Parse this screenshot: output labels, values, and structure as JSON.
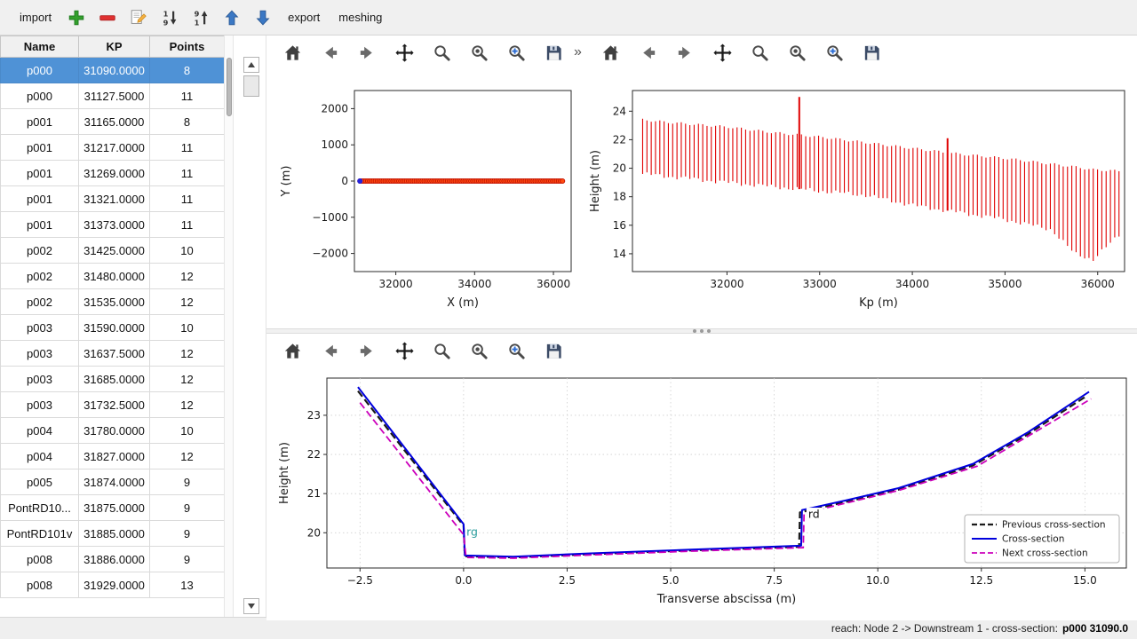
{
  "main_toolbar": {
    "import": "import",
    "export": "export",
    "meshing": "meshing"
  },
  "table": {
    "headers": [
      "Name",
      "KP",
      "Points"
    ],
    "rows": [
      [
        "p000",
        "31090.0000",
        "8"
      ],
      [
        "p000",
        "31127.5000",
        "11"
      ],
      [
        "p001",
        "31165.0000",
        "8"
      ],
      [
        "p001",
        "31217.0000",
        "11"
      ],
      [
        "p001",
        "31269.0000",
        "11"
      ],
      [
        "p001",
        "31321.0000",
        "11"
      ],
      [
        "p001",
        "31373.0000",
        "11"
      ],
      [
        "p002",
        "31425.0000",
        "10"
      ],
      [
        "p002",
        "31480.0000",
        "12"
      ],
      [
        "p002",
        "31535.0000",
        "12"
      ],
      [
        "p003",
        "31590.0000",
        "10"
      ],
      [
        "p003",
        "31637.5000",
        "12"
      ],
      [
        "p003",
        "31685.0000",
        "12"
      ],
      [
        "p003",
        "31732.5000",
        "12"
      ],
      [
        "p004",
        "31780.0000",
        "10"
      ],
      [
        "p004",
        "31827.0000",
        "12"
      ],
      [
        "p005",
        "31874.0000",
        "9"
      ],
      [
        "PontRD10...",
        "31875.0000",
        "9"
      ],
      [
        "PontRD101v",
        "31885.0000",
        "9"
      ],
      [
        "p008",
        "31886.0000",
        "9"
      ],
      [
        "p008",
        "31929.0000",
        "13"
      ]
    ],
    "selected_row": 0,
    "selected_color": "#4f92d6"
  },
  "plot_toolbar": {
    "overflow_label": "»",
    "buttons": [
      {
        "name": "home",
        "icon": "home"
      },
      {
        "name": "back",
        "icon": "arrow-left"
      },
      {
        "name": "forward",
        "icon": "arrow-right"
      },
      {
        "name": "pan",
        "icon": "move"
      },
      {
        "name": "zoom",
        "icon": "magnifier"
      },
      {
        "name": "configure-subplots",
        "icon": "magnifier-dot"
      },
      {
        "name": "edit-parameters",
        "icon": "magnifier-plus"
      },
      {
        "name": "save",
        "icon": "save"
      }
    ]
  },
  "status_bar": {
    "prefix": "reach: Node 2 -> Downstream 1 - cross-section:",
    "highlight": "p000 31090.0"
  },
  "chart_data": [
    {
      "id": "plan_view",
      "type": "scatter",
      "title": "",
      "xlabel": "X (m)",
      "ylabel": "Y (m)",
      "xlim": [
        30950,
        36450
      ],
      "ylim": [
        -2500,
        2500
      ],
      "xticks": [
        {
          "v": 32000,
          "label": "32000"
        },
        {
          "v": 34000,
          "label": "34000"
        },
        {
          "v": 36000,
          "label": "36000"
        }
      ],
      "yticks": [
        {
          "v": -2000,
          "label": "−2000"
        },
        {
          "v": -1000,
          "label": "−1000"
        },
        {
          "v": 0,
          "label": "0"
        },
        {
          "v": 1000,
          "label": "1000"
        },
        {
          "v": 2000,
          "label": "2000"
        }
      ],
      "grid": false,
      "series": {
        "x_start": 31090,
        "x_end": 36230,
        "n": 105,
        "y": 0,
        "color": "#ff4a10",
        "edge": "#c01000",
        "line_color": "#8b0000",
        "first_point_color": "#2222dd"
      }
    },
    {
      "id": "longitudinal_profile",
      "type": "vlines",
      "title": "",
      "xlabel": "Kp (m)",
      "ylabel": "Height (m)",
      "xlim": [
        30980,
        36290
      ],
      "ylim": [
        12.75,
        25.45
      ],
      "xticks": [
        {
          "v": 32000,
          "label": "32000"
        },
        {
          "v": 33000,
          "label": "33000"
        },
        {
          "v": 34000,
          "label": "34000"
        },
        {
          "v": 35000,
          "label": "35000"
        },
        {
          "v": 36000,
          "label": "36000"
        }
      ],
      "yticks": [
        {
          "v": 14,
          "label": "14"
        },
        {
          "v": 16,
          "label": "16"
        },
        {
          "v": 18,
          "label": "18"
        },
        {
          "v": 20,
          "label": "20"
        },
        {
          "v": 22,
          "label": "22"
        },
        {
          "v": 24,
          "label": "24"
        }
      ],
      "grid": false,
      "color": "#e00000",
      "envelope": [
        [
          31090,
          19.6,
          23.4
        ],
        [
          31400,
          19.4,
          23.2
        ],
        [
          32000,
          19.0,
          22.9
        ],
        [
          32500,
          18.7,
          22.5
        ],
        [
          33000,
          18.4,
          22.2
        ],
        [
          33500,
          18.1,
          21.8
        ],
        [
          34000,
          17.4,
          21.4
        ],
        [
          34500,
          16.9,
          21.0
        ],
        [
          35000,
          16.4,
          20.7
        ],
        [
          35500,
          15.7,
          20.3
        ],
        [
          35750,
          14.0,
          20.1
        ],
        [
          35950,
          13.6,
          19.9
        ],
        [
          36100,
          14.5,
          19.85
        ],
        [
          36230,
          15.3,
          19.8
        ]
      ],
      "n_lines": 112,
      "spikes": [
        [
          32780,
          25.0
        ],
        [
          34380,
          22.1
        ]
      ]
    },
    {
      "id": "cross_section",
      "type": "lines",
      "title": "",
      "xlabel": "Transverse abscissa (m)",
      "ylabel": "Height (m)",
      "xlim": [
        -3.3,
        16.0
      ],
      "ylim": [
        19.1,
        23.95
      ],
      "xticks": [
        {
          "v": -2.5,
          "label": "−2.5"
        },
        {
          "v": 0,
          "label": "0.0"
        },
        {
          "v": 2.5,
          "label": "2.5"
        },
        {
          "v": 5,
          "label": "5.0"
        },
        {
          "v": 7.5,
          "label": "7.5"
        },
        {
          "v": 10,
          "label": "10.0"
        },
        {
          "v": 12.5,
          "label": "12.5"
        },
        {
          "v": 15,
          "label": "15.0"
        }
      ],
      "yticks": [
        {
          "v": 20,
          "label": "20"
        },
        {
          "v": 21,
          "label": "21"
        },
        {
          "v": 22,
          "label": "22"
        },
        {
          "v": 23,
          "label": "23"
        }
      ],
      "grid": true,
      "legend_loc": "lower right",
      "series": [
        {
          "name": "Previous cross-section",
          "color": "#1a1a1a",
          "dash": "8 4",
          "width": 2.2,
          "points": [
            [
              -2.55,
              23.62
            ],
            [
              0.0,
              20.18
            ],
            [
              0.03,
              19.4
            ],
            [
              1.2,
              19.37
            ],
            [
              3.0,
              19.45
            ],
            [
              5.5,
              19.55
            ],
            [
              8.1,
              19.64
            ],
            [
              8.12,
              20.52
            ],
            [
              9.2,
              20.78
            ],
            [
              10.5,
              21.1
            ],
            [
              12.3,
              21.72
            ],
            [
              13.6,
              22.5
            ],
            [
              15.05,
              23.5
            ]
          ]
        },
        {
          "name": "Cross-section",
          "color": "#0000dd",
          "dash": null,
          "width": 2,
          "points": [
            [
              -2.55,
              23.72
            ],
            [
              0.0,
              20.22
            ],
            [
              0.03,
              19.42
            ],
            [
              1.2,
              19.39
            ],
            [
              3.0,
              19.47
            ],
            [
              5.5,
              19.57
            ],
            [
              8.15,
              19.67
            ],
            [
              8.17,
              20.58
            ],
            [
              9.2,
              20.82
            ],
            [
              10.5,
              21.14
            ],
            [
              12.3,
              21.76
            ],
            [
              13.6,
              22.55
            ],
            [
              15.1,
              23.6
            ]
          ]
        },
        {
          "name": "Next cross-section",
          "color": "#cc00bb",
          "dash": "8 4",
          "width": 1.8,
          "points": [
            [
              -2.5,
              23.32
            ],
            [
              0.0,
              19.95
            ],
            [
              0.06,
              19.37
            ],
            [
              1.2,
              19.35
            ],
            [
              3.0,
              19.43
            ],
            [
              5.5,
              19.53
            ],
            [
              8.2,
              19.62
            ],
            [
              8.22,
              20.5
            ],
            [
              9.2,
              20.75
            ],
            [
              10.5,
              21.08
            ],
            [
              12.4,
              21.7
            ],
            [
              13.6,
              22.45
            ],
            [
              15.15,
              23.42
            ]
          ]
        }
      ],
      "annotations": [
        {
          "text": "rg",
          "x": 0.07,
          "y": 19.93,
          "color": "#2a9d9d",
          "bg": null
        },
        {
          "text": "rd",
          "x": 8.32,
          "y": 20.38,
          "color": "#111111",
          "bg": "#ffffff"
        }
      ]
    }
  ]
}
